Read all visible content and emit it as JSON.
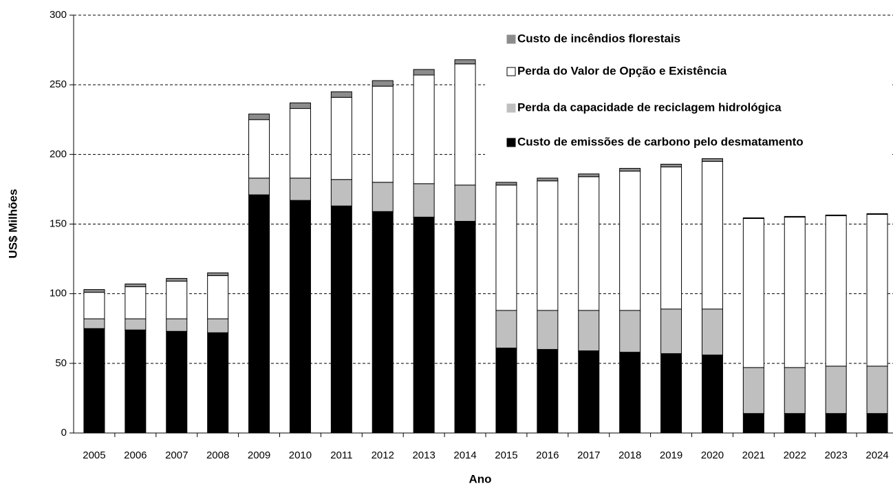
{
  "chart_data": {
    "type": "stacked_bar",
    "xlabel": "Ano",
    "ylabel": "US$ Milhões",
    "categories": [
      "2005",
      "2006",
      "2007",
      "2008",
      "2009",
      "2010",
      "2011",
      "2012",
      "2013",
      "2014",
      "2015",
      "2016",
      "2017",
      "2018",
      "2019",
      "2020",
      "2021",
      "2022",
      "2023",
      "2024"
    ],
    "series": [
      {
        "name": "Custo de emissões de carbono pelo desmatamento",
        "color": "#000000",
        "values": [
          75,
          74,
          73,
          72,
          171,
          167,
          163,
          159,
          155,
          152,
          61,
          60,
          59,
          58,
          57,
          56,
          14,
          14,
          14,
          14
        ]
      },
      {
        "name": "Perda da capacidade de reciclagem hidrológica",
        "color": "#bfbfbf",
        "values": [
          7,
          8,
          9,
          10,
          12,
          16,
          19,
          21,
          24,
          26,
          27,
          28,
          29,
          30,
          32,
          33,
          33,
          33,
          34,
          34
        ]
      },
      {
        "name": "Perda do Valor de Opção e Existência",
        "color": "#ffffff",
        "values": [
          19,
          23,
          27,
          31,
          42,
          50,
          59,
          69,
          78,
          87,
          90,
          93,
          96,
          100,
          102,
          106,
          107,
          108,
          108,
          109
        ]
      },
      {
        "name": "Custo de incêndios florestais",
        "color": "#8c8c8c",
        "values": [
          2,
          2,
          2,
          2,
          4,
          4,
          4,
          4,
          4,
          3,
          2,
          2,
          2,
          2,
          2,
          2,
          0.5,
          0.5,
          0.5,
          0.5
        ]
      }
    ],
    "ylim": [
      0,
      300
    ],
    "yticks": [
      0,
      50,
      100,
      150,
      200,
      250,
      300
    ],
    "grid": true,
    "legend": "upper right"
  }
}
